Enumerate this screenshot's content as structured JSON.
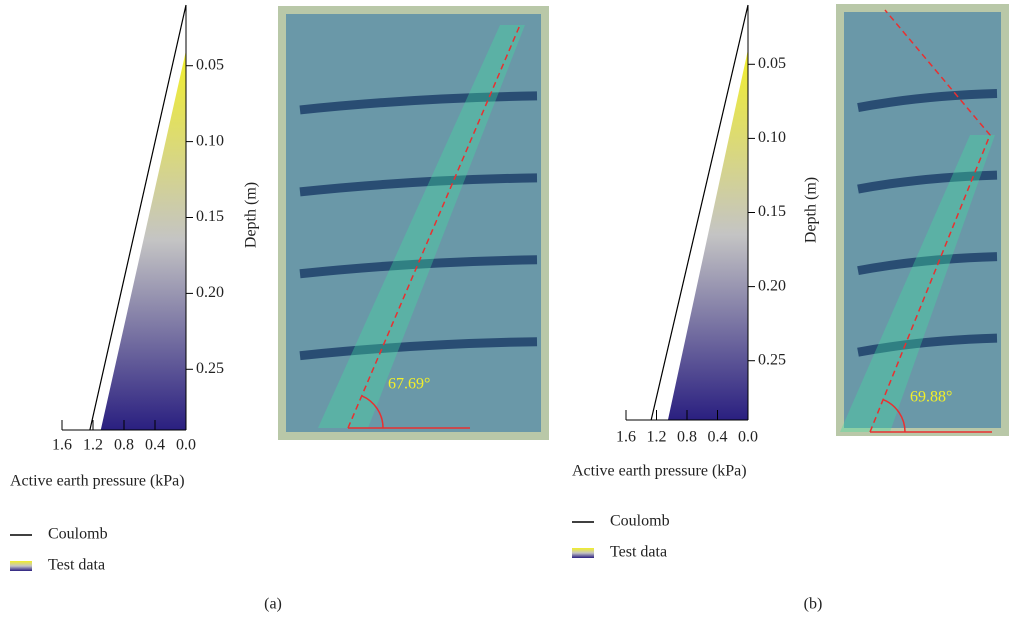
{
  "chart_data": [
    {
      "type": "line",
      "panel_label": "(a)",
      "xlabel": "Active earth pressure (kPa)",
      "ylabel": "Depth (m)",
      "xlim": [
        1.6,
        0
      ],
      "ylim": [
        0.01,
        0.29
      ],
      "xticks": [
        1.6,
        1.2,
        0.8,
        0.4,
        {
          "value": 0,
          "label": "0.0"
        }
      ],
      "yticks": [
        0.05,
        {
          "value": 0.1,
          "label": "0.10"
        },
        0.15,
        {
          "value": 0.2,
          "label": "0.20"
        },
        0.25
      ],
      "annotation": "67.69°",
      "series": [
        {
          "name": "Coulomb",
          "color": "#000000",
          "x": [
            0,
            1.24
          ],
          "y": [
            0.01,
            0.29
          ]
        },
        {
          "name": "Test data",
          "colors": [
            "#f2ef2a",
            "#c4c4c4",
            "#2a1f80"
          ],
          "x": [
            0,
            1.1
          ],
          "y": [
            0.04,
            0.29
          ]
        }
      ]
    },
    {
      "type": "line",
      "panel_label": "(b)",
      "xlabel": "Active earth pressure (kPa)",
      "ylabel": "Depth (m)",
      "xlim": [
        1.6,
        0
      ],
      "ylim": [
        0.01,
        0.29
      ],
      "xticks": [
        1.6,
        1.2,
        0.8,
        0.4,
        {
          "value": 0,
          "label": "0.0"
        }
      ],
      "yticks": [
        0.05,
        {
          "value": 0.1,
          "label": "0.10"
        },
        0.15,
        {
          "value": 0.2,
          "label": "0.20"
        },
        0.25
      ],
      "annotation": "69.88°",
      "series": [
        {
          "name": "Coulomb",
          "color": "#000000",
          "x": [
            0,
            1.27
          ],
          "y": [
            0.01,
            0.29
          ]
        },
        {
          "name": "Test data",
          "colors": [
            "#f2ef2a",
            "#c4c4c4",
            "#2a1f80"
          ],
          "x": [
            0,
            1.05
          ],
          "y": [
            0.04,
            0.29
          ]
        }
      ]
    }
  ]
}
